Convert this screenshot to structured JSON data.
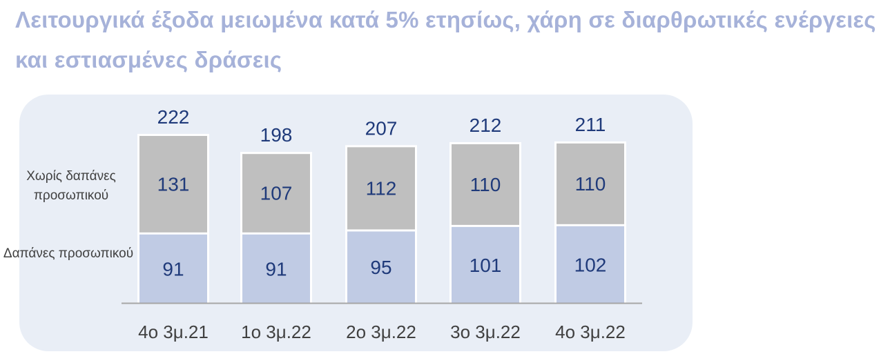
{
  "title": "Λειτουργικά έξοδα μειωμένα κατά 5% ετησίως, χάρη σε διαρθρωτικές ενέργειες και εστιασμένες δράσεις",
  "row_labels": {
    "top": "Χωρίς δαπάνες προσωπικού",
    "bottom": "Δαπάνες προσωπικού"
  },
  "colors": {
    "title": "#a6b2d9",
    "panel": "#e9eef6",
    "top_segment": "#bfbfbf",
    "bottom_segment": "#c0cbe4",
    "value_text": "#1f3a7a",
    "axis_text": "#404040"
  },
  "chart_data": {
    "type": "bar",
    "stacked": true,
    "categories": [
      "4ο 3μ.21",
      "1ο 3μ.22",
      "2ο 3μ.22",
      "3ο 3μ.22",
      "4ο 3μ.22"
    ],
    "series": [
      {
        "name": "Δαπάνες προσωπικού",
        "values": [
          91,
          91,
          95,
          101,
          102
        ]
      },
      {
        "name": "Χωρίς δαπάνες προσωπικού",
        "values": [
          131,
          107,
          112,
          110,
          110
        ]
      }
    ],
    "totals": [
      222,
      198,
      207,
      212,
      211
    ],
    "title": "",
    "xlabel": "",
    "ylabel": "",
    "grid": false,
    "legend": "left"
  }
}
